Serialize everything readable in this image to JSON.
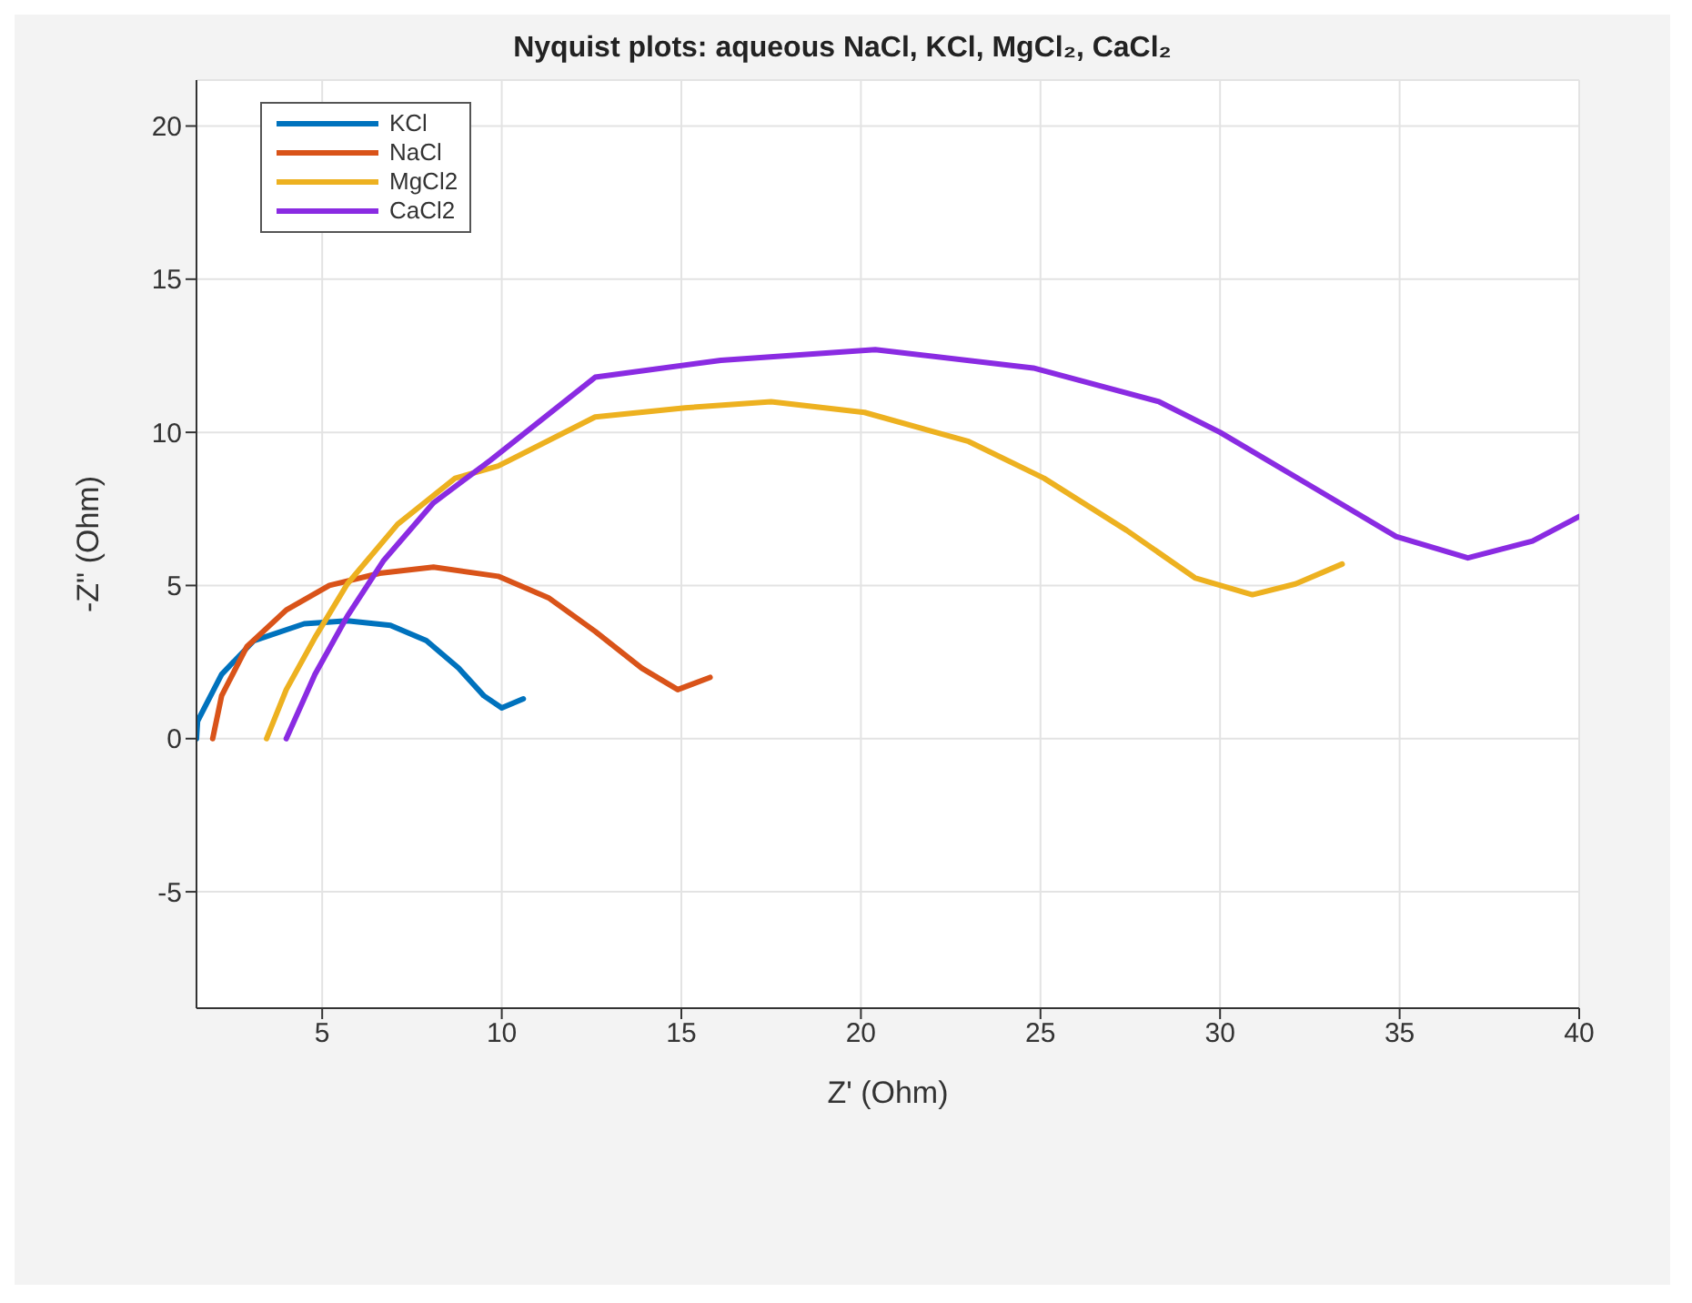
{
  "chart_data": {
    "type": "line",
    "title": "Nyquist plots: aqueous NaCl, KCl, MgCl₂, CaCl₂",
    "xlabel": "Z' (Ohm)",
    "ylabel": "-Z\" (Ohm)",
    "xlim": [
      1.5,
      40
    ],
    "xticks": [
      5,
      10,
      15,
      20,
      25,
      30,
      35,
      40
    ],
    "ylim": [
      -8.8,
      21.5
    ],
    "yticks": [
      -5,
      0,
      5,
      10,
      15,
      20
    ],
    "grid": true,
    "legend": "top left",
    "marker": "none",
    "line_style": "solid",
    "series": [
      {
        "name": "KCl",
        "color": "#0072bd",
        "x": [
          1.5,
          1.53,
          2.2,
          3.1,
          4.5,
          5.7,
          6.9,
          7.9,
          8.8,
          9.5,
          10.0,
          10.6
        ],
        "values": [
          0,
          0.57,
          2.1,
          3.2,
          3.75,
          3.85,
          3.7,
          3.2,
          2.3,
          1.4,
          1.0,
          1.3
        ]
      },
      {
        "name": "NaCl",
        "color": "#d95319",
        "x": [
          1.95,
          2.2,
          2.9,
          4.0,
          5.2,
          6.6,
          8.1,
          9.9,
          11.3,
          12.6,
          13.9,
          14.9,
          15.8
        ],
        "values": [
          0,
          1.4,
          3.0,
          4.2,
          5.0,
          5.4,
          5.6,
          5.3,
          4.6,
          3.5,
          2.3,
          1.6,
          2.0
        ]
      },
      {
        "name": "MgCl2",
        "color": "#edb120",
        "x": [
          3.45,
          4.0,
          4.8,
          5.7,
          7.1,
          8.7,
          9.9,
          12.6,
          15.1,
          17.5,
          20.1,
          23.0,
          25.1,
          27.4,
          29.3,
          30.9,
          32.1,
          33.4
        ],
        "values": [
          0,
          1.6,
          3.3,
          5.05,
          7.0,
          8.5,
          8.9,
          10.5,
          10.8,
          11.0,
          10.65,
          9.7,
          8.5,
          6.8,
          5.25,
          4.7,
          5.05,
          5.7
        ]
      },
      {
        "name": "CaCl2",
        "color": "#8a2be2",
        "x": [
          4.0,
          4.8,
          5.7,
          6.7,
          8.1,
          9.7,
          12.6,
          16.1,
          20.4,
          24.8,
          28.3,
          30.0,
          32.6,
          34.9,
          36.9,
          38.7,
          40.0
        ],
        "values": [
          0,
          2.1,
          4.0,
          5.8,
          7.7,
          9.1,
          11.8,
          12.35,
          12.7,
          12.1,
          11.0,
          10.0,
          8.2,
          6.6,
          5.9,
          6.45,
          7.25
        ]
      }
    ]
  }
}
